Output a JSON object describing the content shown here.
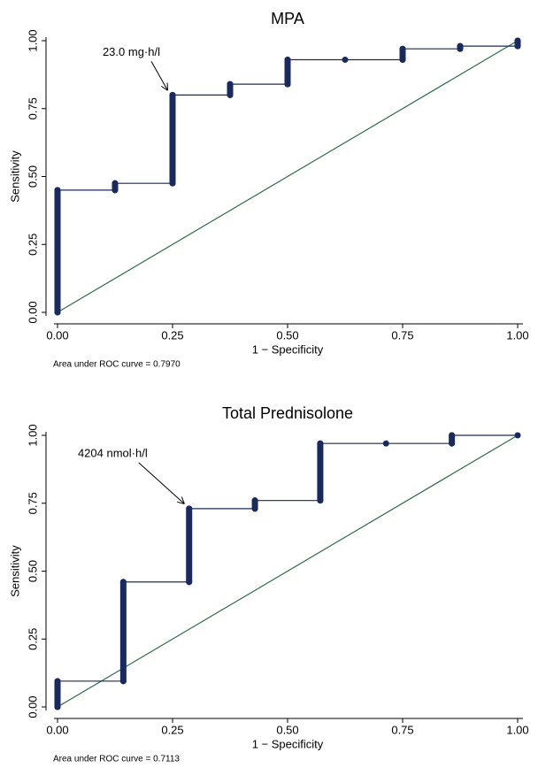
{
  "chart_data": [
    {
      "type": "line",
      "title": "MPA",
      "xlabel": "1 − Specificity",
      "ylabel": "Sensitivity",
      "note": "Area under ROC curve = 0.7970",
      "annotation": {
        "text": "23.0 mg·h/l",
        "x": 0.25,
        "y": 0.8
      },
      "x": [
        0,
        0,
        0.125,
        0.125,
        0.25,
        0.25,
        0.375,
        0.375,
        0.5,
        0.5,
        0.625,
        0.75,
        0.75,
        0.875,
        0.875,
        1,
        1
      ],
      "y": [
        0,
        0.45,
        0.45,
        0.475,
        0.475,
        0.8,
        0.8,
        0.84,
        0.84,
        0.93,
        0.93,
        0.93,
        0.97,
        0.97,
        0.98,
        0.98,
        1
      ],
      "color": "#1b2a5c",
      "reference_color": "#2f6a4c",
      "xlim": [
        0,
        1
      ],
      "ylim": [
        0,
        1
      ],
      "xticks": [
        {
          "value": 0,
          "label": "0.00"
        },
        {
          "value": 0.25,
          "label": "0.25"
        },
        {
          "value": 0.5,
          "label": "0.50"
        },
        {
          "value": 0.75,
          "label": "0.75"
        },
        {
          "value": 1,
          "label": "1.00"
        }
      ],
      "yticks": [
        {
          "value": 0,
          "label": "0.00"
        },
        {
          "value": 0.25,
          "label": "0.25"
        },
        {
          "value": 0.5,
          "label": "0.50"
        },
        {
          "value": 0.75,
          "label": "0.75"
        },
        {
          "value": 1,
          "label": "1.00"
        }
      ]
    },
    {
      "type": "line",
      "title": "Total Prednisolone",
      "xlabel": "1 − Specificity",
      "ylabel": "Sensitivity",
      "note": "Area under ROC curve = 0.7113",
      "annotation": {
        "text": "4204 nmol·h/l",
        "x": 0.286,
        "y": 0.73
      },
      "x": [
        0,
        0,
        0.143,
        0.143,
        0.286,
        0.286,
        0.429,
        0.429,
        0.571,
        0.571,
        0.714,
        0.857,
        0.857,
        1
      ],
      "y": [
        0,
        0.095,
        0.095,
        0.46,
        0.46,
        0.73,
        0.73,
        0.76,
        0.76,
        0.97,
        0.97,
        0.97,
        1,
        1
      ],
      "color": "#1b2a5c",
      "reference_color": "#2f6a4c",
      "xlim": [
        0,
        1
      ],
      "ylim": [
        0,
        1
      ],
      "xticks": [
        {
          "value": 0,
          "label": "0.00"
        },
        {
          "value": 0.25,
          "label": "0.25"
        },
        {
          "value": 0.5,
          "label": "0.50"
        },
        {
          "value": 0.75,
          "label": "0.75"
        },
        {
          "value": 1,
          "label": "1.00"
        }
      ],
      "yticks": [
        {
          "value": 0,
          "label": "0.00"
        },
        {
          "value": 0.25,
          "label": "0.25"
        },
        {
          "value": 0.5,
          "label": "0.50"
        },
        {
          "value": 0.75,
          "label": "0.75"
        },
        {
          "value": 1,
          "label": "1.00"
        }
      ]
    }
  ]
}
